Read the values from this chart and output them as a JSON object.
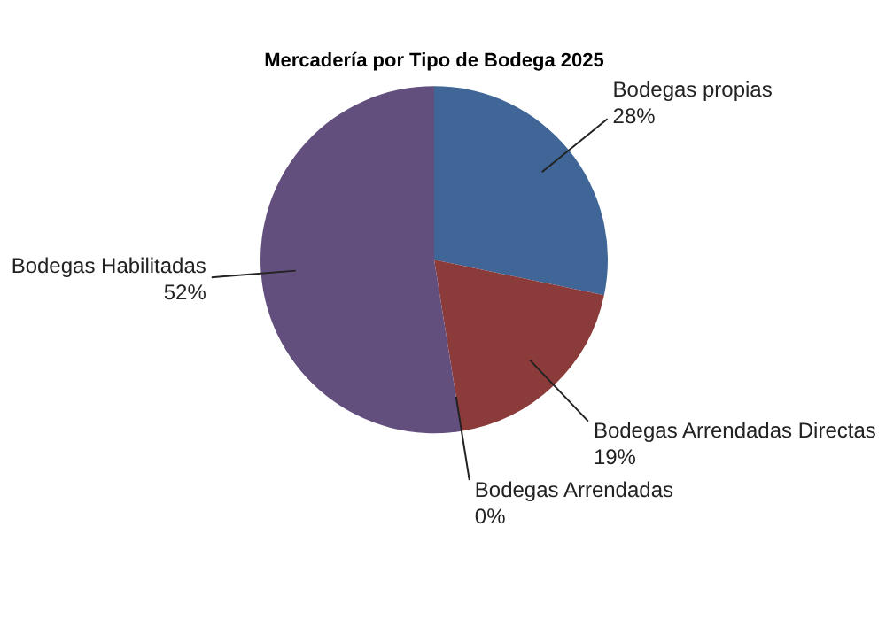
{
  "chart_data": {
    "type": "pie",
    "title": "Mercadería por Tipo de Bodega 2025",
    "categories": [
      "Bodegas propias",
      "Bodegas Arrendadas Directas",
      "Bodegas Arrendadas",
      "Bodegas Habilitadas"
    ],
    "values": [
      28,
      19,
      0,
      52
    ],
    "colors": [
      "#3f6696",
      "#8c3b3b",
      "#6f8a3f",
      "#634f7d"
    ],
    "value_labels": [
      "28%",
      "19%",
      "0%",
      "52%"
    ],
    "legend": false
  }
}
